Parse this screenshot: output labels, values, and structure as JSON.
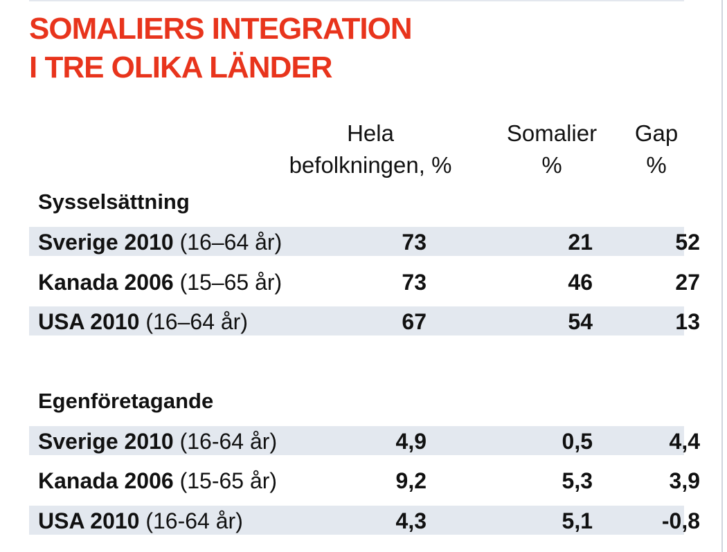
{
  "chart_data": {
    "type": "table",
    "title_lines": [
      "SOMALIERS INTEGRATION",
      "I TRE OLIKA LÄNDER"
    ],
    "columns": [
      {
        "line1": "Hela",
        "line2": "befolkningen, %"
      },
      {
        "line1": "Somalier",
        "line2": "%"
      },
      {
        "line1": "Gap",
        "line2": "%"
      }
    ],
    "sections": [
      {
        "name": "Sysselsättning",
        "rows": [
          {
            "country": "Sverige 2010",
            "age": "(16–64 år)",
            "values": [
              "73",
              "21",
              "52"
            ]
          },
          {
            "country": "Kanada 2006",
            "age": "(15–65 år)",
            "values": [
              "73",
              "46",
              "27"
            ]
          },
          {
            "country": "USA 2010",
            "age": "(16–64 år)",
            "values": [
              "67",
              "54",
              "13"
            ]
          }
        ]
      },
      {
        "name": "Egenföretagande",
        "rows": [
          {
            "country": "Sverige 2010",
            "age": "(16-64 år)",
            "values": [
              "4,9",
              "0,5",
              "4,4"
            ]
          },
          {
            "country": "Kanada 2006",
            "age": "(15-65 år)",
            "values": [
              "9,2",
              "5,3",
              "3,9"
            ]
          },
          {
            "country": "USA 2010",
            "age": "(16-64 år)",
            "values": [
              "4,3",
              "5,1",
              "-0,8"
            ]
          }
        ]
      }
    ]
  },
  "colors": {
    "title": "#e8341c",
    "row_shade": "#e3e8ef",
    "text": "#111111"
  }
}
